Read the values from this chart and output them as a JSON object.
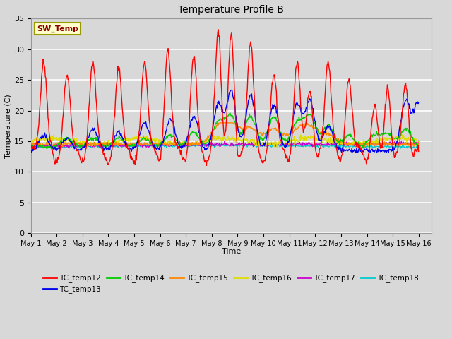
{
  "title": "Temperature Profile B",
  "xlabel": "Time",
  "ylabel": "Temperature (C)",
  "ylim": [
    0,
    35
  ],
  "yticks": [
    0,
    5,
    10,
    15,
    20,
    25,
    30,
    35
  ],
  "plot_bg": "#d8d8d8",
  "fig_bg": "#d8d8d8",
  "grid_color": "#ffffff",
  "series_colors": {
    "TC_temp12": "#ff0000",
    "TC_temp13": "#0000ee",
    "TC_temp14": "#00cc00",
    "TC_temp15": "#ff8800",
    "TC_temp16": "#dddd00",
    "TC_temp17": "#cc00cc",
    "TC_temp18": "#00cccc"
  },
  "sw_temp_annotation": "SW_Temp",
  "legend_entries": [
    "TC_temp12",
    "TC_temp13",
    "TC_temp14",
    "TC_temp15",
    "TC_temp16",
    "TC_temp17",
    "TC_temp18"
  ]
}
